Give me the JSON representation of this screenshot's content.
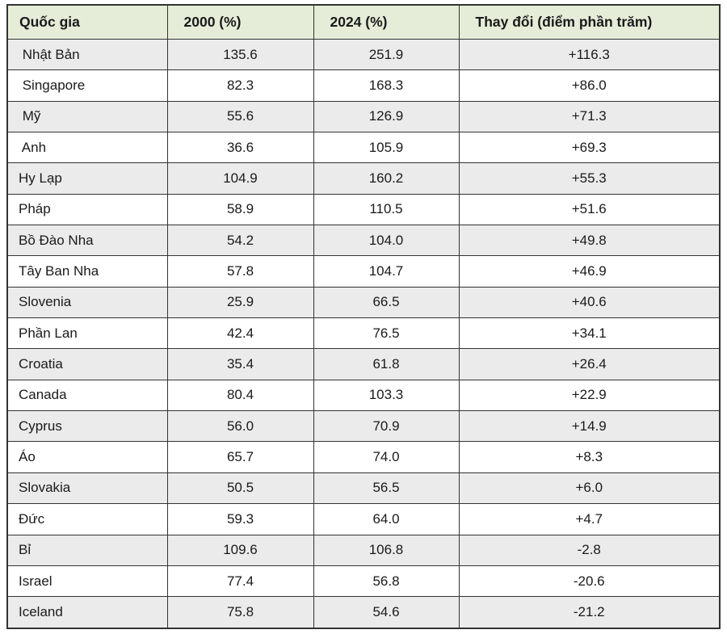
{
  "table": {
    "headers": [
      "Quốc gia",
      "2000 (%)",
      "2024 (%)",
      "Thay đổi (điểm phần trăm)"
    ],
    "rows": [
      {
        "country": " Nhật Bản",
        "y2000": "135.6",
        "y2024": "251.9",
        "change": "+116.3"
      },
      {
        "country": " Singapore",
        "y2000": "82.3",
        "y2024": "168.3",
        "change": "+86.0"
      },
      {
        "country": " Mỹ",
        "y2000": "55.6",
        "y2024": "126.9",
        "change": "+71.3"
      },
      {
        "country": " Anh",
        "y2000": "36.6",
        "y2024": "105.9",
        "change": "+69.3"
      },
      {
        "country": "Hy Lạp",
        "y2000": "104.9",
        "y2024": "160.2",
        "change": "+55.3"
      },
      {
        "country": "Pháp",
        "y2000": "58.9",
        "y2024": "110.5",
        "change": "+51.6"
      },
      {
        "country": "Bồ Đào Nha",
        "y2000": "54.2",
        "y2024": "104.0",
        "change": "+49.8"
      },
      {
        "country": "Tây Ban Nha",
        "y2000": "57.8",
        "y2024": "104.7",
        "change": "+46.9"
      },
      {
        "country": "Slovenia",
        "y2000": "25.9",
        "y2024": "66.5",
        "change": "+40.6"
      },
      {
        "country": "Phần Lan",
        "y2000": "42.4",
        "y2024": "76.5",
        "change": "+34.1"
      },
      {
        "country": "Croatia",
        "y2000": "35.4",
        "y2024": "61.8",
        "change": "+26.4"
      },
      {
        "country": "Canada",
        "y2000": "80.4",
        "y2024": "103.3",
        "change": "+22.9"
      },
      {
        "country": "Cyprus",
        "y2000": "56.0",
        "y2024": "70.9",
        "change": "+14.9"
      },
      {
        "country": "Áo",
        "y2000": "65.7",
        "y2024": "74.0",
        "change": "+8.3"
      },
      {
        "country": "Slovakia",
        "y2000": "50.5",
        "y2024": "56.5",
        "change": "+6.0"
      },
      {
        "country": "Đức",
        "y2000": "59.3",
        "y2024": "64.0",
        "change": "+4.7"
      },
      {
        "country": "Bỉ",
        "y2000": "109.6",
        "y2024": "106.8",
        "change": "-2.8"
      },
      {
        "country": "Israel",
        "y2000": "77.4",
        "y2024": "56.8",
        "change": "-20.6"
      },
      {
        "country": "Iceland",
        "y2000": "75.8",
        "y2024": "54.6",
        "change": "-21.2"
      }
    ]
  },
  "colors": {
    "header_bg": "#e5edd9",
    "stripe_bg": "#ebebeb",
    "border": "#333333",
    "text": "#1a1a1a"
  },
  "chart_data": {
    "type": "table",
    "columns": [
      "Quốc gia",
      "2000 (%)",
      "2024 (%)",
      "Thay đổi (điểm phần trăm)"
    ],
    "rows": [
      [
        "Nhật Bản",
        135.6,
        251.9,
        116.3
      ],
      [
        "Singapore",
        82.3,
        168.3,
        86.0
      ],
      [
        "Mỹ",
        55.6,
        126.9,
        71.3
      ],
      [
        "Anh",
        36.6,
        105.9,
        69.3
      ],
      [
        "Hy Lạp",
        104.9,
        160.2,
        55.3
      ],
      [
        "Pháp",
        58.9,
        110.5,
        51.6
      ],
      [
        "Bồ Đào Nha",
        54.2,
        104.0,
        49.8
      ],
      [
        "Tây Ban Nha",
        57.8,
        104.7,
        46.9
      ],
      [
        "Slovenia",
        25.9,
        66.5,
        40.6
      ],
      [
        "Phần Lan",
        42.4,
        76.5,
        34.1
      ],
      [
        "Croatia",
        35.4,
        61.8,
        26.4
      ],
      [
        "Canada",
        80.4,
        103.3,
        22.9
      ],
      [
        "Cyprus",
        56.0,
        70.9,
        14.9
      ],
      [
        "Áo",
        65.7,
        74.0,
        8.3
      ],
      [
        "Slovakia",
        50.5,
        56.5,
        6.0
      ],
      [
        "Đức",
        59.3,
        64.0,
        4.7
      ],
      [
        "Bỉ",
        109.6,
        106.8,
        -2.8
      ],
      [
        "Israel",
        77.4,
        56.8,
        -20.6
      ],
      [
        "Iceland",
        75.8,
        54.6,
        -21.2
      ]
    ]
  }
}
